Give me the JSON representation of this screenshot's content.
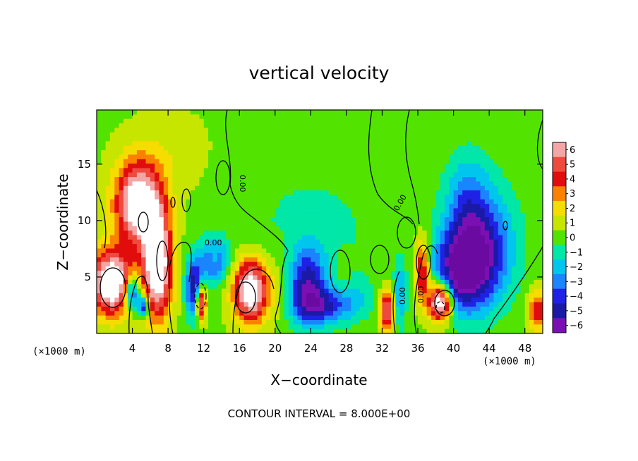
{
  "chart_data": {
    "type": "heatmap",
    "title": "vertical velocity",
    "xlabel": "X−coordinate",
    "ylabel": "Z−coordinate",
    "x_unit": "(×1000 m)",
    "y_unit": "(×1000 m)",
    "xlim": [
      0,
      50
    ],
    "ylim": [
      0,
      19.8
    ],
    "x_ticks": [
      4,
      8,
      12,
      16,
      20,
      24,
      28,
      32,
      36,
      40,
      44,
      48
    ],
    "y_ticks": [
      5,
      10,
      15
    ],
    "colorbar": {
      "levels": [
        6,
        5,
        4,
        3,
        2,
        1,
        0,
        -1,
        -2,
        -3,
        -4,
        -5,
        -6
      ],
      "labels": [
        "6",
        "5",
        "4",
        "3",
        "2",
        "1",
        "0",
        "−1",
        "−2",
        "−3",
        "−4",
        "−5",
        "−6"
      ],
      "colors": [
        "#f4a6a6",
        "#ee4a3e",
        "#e10c0c",
        "#fb8200",
        "#f6dc00",
        "#c6e600",
        "#52e400",
        "#00e7a8",
        "#00c6ee",
        "#1b84ff",
        "#1f22e6",
        "#1a1aa6",
        "#7a10b4"
      ]
    },
    "contour_label": "0.00",
    "footer": "CONTOUR INTERVAL =  8.000E+00",
    "background_value": 0.3,
    "blobs": [
      {
        "x": 1.6,
        "z": 4.5,
        "rx": 2.3,
        "rz": 2.8,
        "v": 8.5
      },
      {
        "x": 4.7,
        "z": 11.5,
        "rx": 2.6,
        "rz": 3.8,
        "v": 8
      },
      {
        "x": 6.8,
        "z": 6.0,
        "rx": 1.6,
        "rz": 4.6,
        "v": 8.5
      },
      {
        "x": 4.0,
        "z": 3.6,
        "rx": 0.8,
        "rz": 1.5,
        "v": -6
      },
      {
        "x": 5.3,
        "z": 2.4,
        "rx": 0.6,
        "rz": 1.0,
        "v": -6
      },
      {
        "x": 11.0,
        "z": 4.0,
        "rx": 1.0,
        "rz": 2.6,
        "v": -6
      },
      {
        "x": 11.7,
        "z": 2.8,
        "rx": 0.6,
        "rz": 1.6,
        "v": 8
      },
      {
        "x": 13.2,
        "z": 6.5,
        "rx": 1.6,
        "rz": 2.0,
        "v": -4
      },
      {
        "x": 13.2,
        "z": 6.8,
        "rx": 0.5,
        "rz": 0.8,
        "v": 2
      },
      {
        "x": 17.3,
        "z": 3.8,
        "rx": 2.0,
        "rz": 2.8,
        "v": 8
      },
      {
        "x": 23.5,
        "z": 4.2,
        "rx": 2.2,
        "rz": 3.2,
        "v": -5
      },
      {
        "x": 25.5,
        "z": 2.4,
        "rx": 2.8,
        "rz": 1.6,
        "v": -4
      },
      {
        "x": 24.0,
        "z": 9.0,
        "rx": 8.0,
        "rz": 6.0,
        "v": -1.2
      },
      {
        "x": 29.0,
        "z": 3.0,
        "rx": 2.0,
        "rz": 2.0,
        "v": -1.5
      },
      {
        "x": 27.5,
        "z": 5.5,
        "rx": 1.0,
        "rz": 1.8,
        "v": 0.9
      },
      {
        "x": 32.5,
        "z": 2.0,
        "rx": 0.8,
        "rz": 1.8,
        "v": 6
      },
      {
        "x": 34.0,
        "z": 3.5,
        "rx": 0.7,
        "rz": 3.0,
        "v": -3
      },
      {
        "x": 36.5,
        "z": 5.5,
        "rx": 0.8,
        "rz": 2.8,
        "v": 5
      },
      {
        "x": 38.5,
        "z": 2.8,
        "rx": 1.3,
        "rz": 1.7,
        "v": 9
      },
      {
        "x": 40.5,
        "z": 5.5,
        "rx": 2.8,
        "rz": 3.5,
        "v": -5.5
      },
      {
        "x": 43.0,
        "z": 7.0,
        "rx": 3.2,
        "rz": 4.5,
        "v": -5
      },
      {
        "x": 41.5,
        "z": 12.0,
        "rx": 2.5,
        "rz": 4.0,
        "v": -2.5
      },
      {
        "x": 44.0,
        "z": 9.0,
        "rx": 5.0,
        "rz": 6.5,
        "v": -1.0
      },
      {
        "x": 49.5,
        "z": 2.0,
        "rx": 1.2,
        "rz": 1.8,
        "v": 4
      },
      {
        "x": 21.0,
        "z": 5.0,
        "rx": 1.5,
        "rz": 3.5,
        "v": 1.2
      },
      {
        "x": 8.5,
        "z": 16.0,
        "rx": 4.0,
        "rz": 3.5,
        "v": 0.8
      },
      {
        "x": 15.0,
        "z": 13.5,
        "rx": 1.5,
        "rz": 2.5,
        "v": -0.6
      }
    ]
  }
}
